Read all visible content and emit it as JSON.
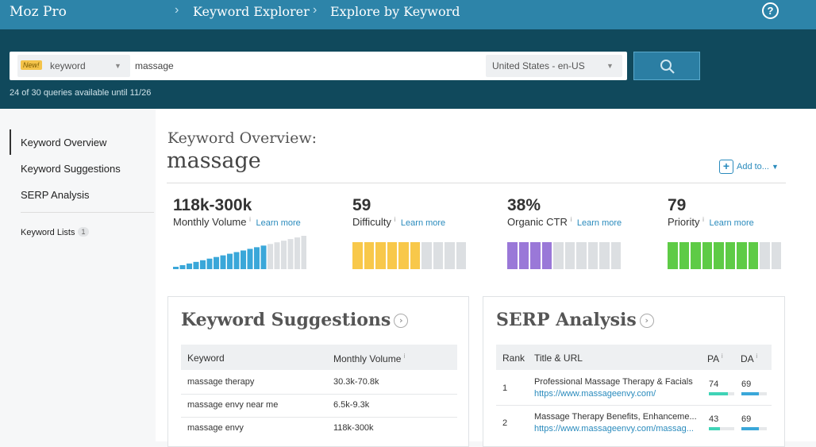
{
  "topbar": {
    "brand": "Moz Pro",
    "breadcrumb": [
      "Keyword Explorer",
      "Explore by Keyword"
    ],
    "help_label": "?"
  },
  "search": {
    "new_badge": "New!",
    "type_value": "keyword",
    "query": "massage",
    "location": "United States - en-US",
    "quota": "24 of 30 queries available until 11/26"
  },
  "sidebar": {
    "items": [
      {
        "label": "Keyword Overview"
      },
      {
        "label": "Keyword Suggestions"
      },
      {
        "label": "SERP Analysis"
      }
    ],
    "lists_label": "Keyword Lists",
    "lists_count": "1"
  },
  "overview": {
    "label": "Keyword Overview:",
    "keyword": "massage",
    "add_to": "Add to...",
    "metrics": [
      {
        "value": "118k-300k",
        "name": "Monthly Volume",
        "learn": "Learn more"
      },
      {
        "value": "59",
        "name": "Difficulty",
        "learn": "Learn more",
        "color": "#f8c84a",
        "filled": 6,
        "total": 10
      },
      {
        "value": "38%",
        "name": "Organic CTR",
        "learn": "Learn more",
        "color": "#9a78d8",
        "filled": 4,
        "total": 10
      },
      {
        "value": "79",
        "name": "Priority",
        "learn": "Learn more",
        "color": "#5ecb46",
        "filled": 8,
        "total": 10
      }
    ],
    "volume_bars": {
      "total": 20,
      "filled": 14,
      "filled_color": "#3aa7d9",
      "empty_color": "#dcdfe2"
    }
  },
  "suggestions": {
    "title": "Keyword Suggestions",
    "col_keyword": "Keyword",
    "col_volume": "Monthly Volume",
    "rows": [
      {
        "keyword": "massage therapy",
        "volume": "30.3k-70.8k"
      },
      {
        "keyword": "massage envy near me",
        "volume": "6.5k-9.3k"
      },
      {
        "keyword": "massage envy",
        "volume": "118k-300k"
      }
    ]
  },
  "serp": {
    "title": "SERP Analysis",
    "col_rank": "Rank",
    "col_title": "Title & URL",
    "col_pa": "PA",
    "col_da": "DA",
    "rows": [
      {
        "rank": "1",
        "title": "Professional Massage Therapy & Facials",
        "url": "https://www.massageenvy.com/",
        "pa": "74",
        "da": "69",
        "pa_frac": 0.74,
        "da_frac": 0.69
      },
      {
        "rank": "2",
        "title": "Massage Therapy Benefits, Enhanceme...",
        "url": "https://www.massageenvy.com/massag...",
        "pa": "43",
        "da": "69",
        "pa_frac": 0.43,
        "da_frac": 0.69
      }
    ],
    "pa_color": "#3fd3b6",
    "da_color": "#3aa7d9"
  }
}
